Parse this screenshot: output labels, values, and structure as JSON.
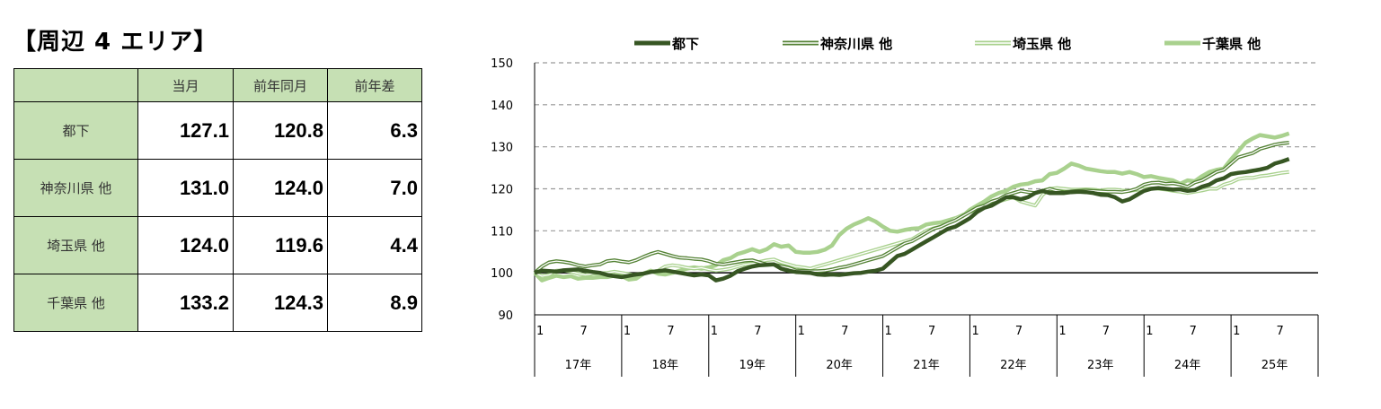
{
  "title": "【周辺 4 エリア】",
  "table": {
    "headers": [
      "",
      "当月",
      "前年同月",
      "前年差"
    ],
    "rows": [
      {
        "area": "都下",
        "current": "127.1",
        "prev_year": "120.8",
        "diff": "6.3"
      },
      {
        "area": "神奈川県 他",
        "current": "131.0",
        "prev_year": "124.0",
        "diff": "7.0"
      },
      {
        "area": "埼玉県 他",
        "current": "124.0",
        "prev_year": "119.6",
        "diff": "4.4"
      },
      {
        "area": "千葉県 他",
        "current": "133.2",
        "prev_year": "124.3",
        "diff": "8.9"
      }
    ]
  },
  "chart_data": {
    "type": "line",
    "ylim": [
      90,
      150
    ],
    "yticks": [
      90,
      100,
      110,
      120,
      130,
      140,
      150
    ],
    "grid": "dashed horizontal",
    "reference_line": 100,
    "legend_position": "top",
    "month_ticks": [
      "1",
      "7"
    ],
    "years": [
      "17年",
      "18年",
      "19年",
      "20年",
      "21年",
      "22年",
      "23年",
      "24年",
      "25年"
    ],
    "x_start": "2017-01",
    "series": [
      {
        "name": "都下",
        "color": "#375623",
        "style": "solid",
        "values": [
          100,
          100.5,
          100.4,
          100.3,
          100.6,
          100.7,
          100.8,
          100.5,
          100.2,
          100,
          99.5,
          99.2,
          99.0,
          99.3,
          99.6,
          99.8,
          100.2,
          100.4,
          100.6,
          100.3,
          100.0,
          99.7,
          99.4,
          99.6,
          99.4,
          98.2,
          98.6,
          99.3,
          100.4,
          101.0,
          101.5,
          101.8,
          101.9,
          102.0,
          101.0,
          100.5,
          100.2,
          100.1,
          100.0,
          99.6,
          99.5,
          99.6,
          99.5,
          99.7,
          99.9,
          100.0,
          100.3,
          100.5,
          101.0,
          102.5,
          104.0,
          104.5,
          105.5,
          106.5,
          107.5,
          108.5,
          109.5,
          110.5,
          111.0,
          112.0,
          113.0,
          114.5,
          115.5,
          116.0,
          117.0,
          118.0,
          118.0,
          117.5,
          118.0,
          119.0,
          119.5,
          119.0,
          119.0,
          119.0,
          119.2,
          119.3,
          119.2,
          119.0,
          118.6,
          118.5,
          118.0,
          117.0,
          117.5,
          118.5,
          119.5,
          120.0,
          120.2,
          120.0,
          119.8,
          119.9,
          119.5,
          119.7,
          120.5,
          121.0,
          122.0,
          122.5,
          123.5,
          123.8,
          124.0,
          124.3,
          124.6,
          125.0,
          126.0,
          126.5,
          127.1
        ]
      },
      {
        "name": "神奈川県 他",
        "color": "#548235",
        "style": "double",
        "values": [
          100,
          101.5,
          102.5,
          102.8,
          102.6,
          102.3,
          101.8,
          101.5,
          101.8,
          102.0,
          102.8,
          103.0,
          102.7,
          102.5,
          103.0,
          103.8,
          104.5,
          105.0,
          104.5,
          104.0,
          103.6,
          103.5,
          103.3,
          103.2,
          102.8,
          102.2,
          102.0,
          102.3,
          102.6,
          102.9,
          103.0,
          102.5,
          102.0,
          102.0,
          101.6,
          101.2,
          100.6,
          100.5,
          100.4,
          100.4,
          100.5,
          100.8,
          101.2,
          101.5,
          102.0,
          102.5,
          103.0,
          103.5,
          104.0,
          105.0,
          106.0,
          107.0,
          107.5,
          108.5,
          109.5,
          110.5,
          111.0,
          111.8,
          112.5,
          113.5,
          114.5,
          115.5,
          116.0,
          117.0,
          117.5,
          118.5,
          119.0,
          119.5,
          119.2,
          119.0,
          119.5,
          120.0,
          119.5,
          119.2,
          119.4,
          119.5,
          119.6,
          119.5,
          119.4,
          119.3,
          119.3,
          119.2,
          119.5,
          120.0,
          121.0,
          121.4,
          121.5,
          121.2,
          121.3,
          121.0,
          120.5,
          121.5,
          122.0,
          123.0,
          124.0,
          124.5,
          126.0,
          127.5,
          128.0,
          128.5,
          129.5,
          130.0,
          130.5,
          130.8,
          131.0
        ]
      },
      {
        "name": "埼玉県 他",
        "color": "#a9d18e",
        "style": "double",
        "values": [
          100,
          99.2,
          99.5,
          100.5,
          100.6,
          100.3,
          99.8,
          99.5,
          99.8,
          99.9,
          100.0,
          100.3,
          100.0,
          99.7,
          99.4,
          99.8,
          100.2,
          100.5,
          101.5,
          101.8,
          101.6,
          101.2,
          101.0,
          101.2,
          100.8,
          100.5,
          100.7,
          101.0,
          101.5,
          102.0,
          102.2,
          102.6,
          103.0,
          103.2,
          102.5,
          102.0,
          101.5,
          101.3,
          101.0,
          101.5,
          102.0,
          102.5,
          103.0,
          103.5,
          104.0,
          104.5,
          105.0,
          105.5,
          106.0,
          106.5,
          107.0,
          107.5,
          108.0,
          109.0,
          110.0,
          110.6,
          111.0,
          112.0,
          113.0,
          113.8,
          114.5,
          115.0,
          115.5,
          116.0,
          117.0,
          117.5,
          118.0,
          117.0,
          116.5,
          116.0,
          118.5,
          120.0,
          120.2,
          120.0,
          119.8,
          119.8,
          119.9,
          119.8,
          119.6,
          119.8,
          119.8,
          119.6,
          119.5,
          119.7,
          120.0,
          120.1,
          120.0,
          119.8,
          119.5,
          119.3,
          119.0,
          119.3,
          119.6,
          120.0,
          120.0,
          121.0,
          121.5,
          122.3,
          122.6,
          122.6,
          123.0,
          123.2,
          123.5,
          123.8,
          124.0
        ]
      },
      {
        "name": "千葉県 他",
        "color": "#a9d18e",
        "style": "thick",
        "values": [
          100,
          98.2,
          98.8,
          99.3,
          99.0,
          99.2,
          98.6,
          98.8,
          98.8,
          99.0,
          99.0,
          99.3,
          99.2,
          98.4,
          98.6,
          99.8,
          100.5,
          99.8,
          99.6,
          100.0,
          100.5,
          101.0,
          101.3,
          101.0,
          101.3,
          101.8,
          103.0,
          103.5,
          104.5,
          105.0,
          105.6,
          105.0,
          105.6,
          106.8,
          106.2,
          106.5,
          105.0,
          104.8,
          104.8,
          105.0,
          105.5,
          106.5,
          109.0,
          110.5,
          111.5,
          112.2,
          113.0,
          112.2,
          111.0,
          110.0,
          109.8,
          110.2,
          110.5,
          110.6,
          111.5,
          111.8,
          112.0,
          112.5,
          113.0,
          113.5,
          115.0,
          116.0,
          117.0,
          118.2,
          119.0,
          119.5,
          120.5,
          121.0,
          121.2,
          121.8,
          122.0,
          123.5,
          123.8,
          124.8,
          126.0,
          125.5,
          124.8,
          124.5,
          124.2,
          124.0,
          124.0,
          123.6,
          124.0,
          123.5,
          122.8,
          123.0,
          122.6,
          122.3,
          122.0,
          121.2,
          122.0,
          121.8,
          123.0,
          124.0,
          124.5,
          124.8,
          127.0,
          129.0,
          131.0,
          132.0,
          132.8,
          132.5,
          132.2,
          132.6,
          133.2
        ]
      }
    ]
  }
}
